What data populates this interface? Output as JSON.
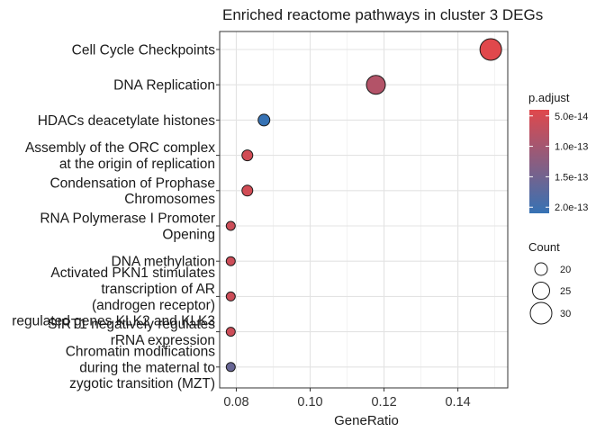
{
  "chart_data": {
    "type": "scatter",
    "title": "Enriched reactome pathways in cluster 3 DEGs",
    "xlabel": "GeneRatio",
    "ylabel": "",
    "xlim": [
      0.0755,
      0.1535
    ],
    "x_ticks": [
      0.08,
      0.1,
      0.12,
      0.14
    ],
    "x_tick_labels": [
      "0.08",
      "0.10",
      "0.12",
      "0.14"
    ],
    "grid": true,
    "categories": [
      [
        "Cell Cycle Checkpoints"
      ],
      [
        "DNA Replication"
      ],
      [
        "HDACs deacetylate histones"
      ],
      [
        "Assembly of the ORC complex",
        "at the origin of replication"
      ],
      [
        "Condensation of Prophase",
        "Chromosomes"
      ],
      [
        "RNA Polymerase I Promoter",
        "Opening"
      ],
      [
        "DNA methylation"
      ],
      [
        "Activated PKN1 stimulates",
        "transcription of AR",
        "(androgen receptor)",
        "regulated genes KLK2 and KLK3"
      ],
      [
        "SIRT1 negatively regulates",
        "rRNA expression"
      ],
      [
        "Chromatin modifications",
        "during the maternal to",
        "zygotic transition (MZT)"
      ]
    ],
    "points": [
      {
        "x": 0.1489,
        "count": 34,
        "p_adjust": 4e-14
      },
      {
        "x": 0.1178,
        "count": 31,
        "p_adjust": 8.5e-14
      },
      {
        "x": 0.0875,
        "count": 23,
        "p_adjust": 2.1e-13
      },
      {
        "x": 0.083,
        "count": 22,
        "p_adjust": 5.5e-14
      },
      {
        "x": 0.083,
        "count": 22,
        "p_adjust": 5.5e-14
      },
      {
        "x": 0.0785,
        "count": 20,
        "p_adjust": 6e-14
      },
      {
        "x": 0.0785,
        "count": 20,
        "p_adjust": 6e-14
      },
      {
        "x": 0.0785,
        "count": 20,
        "p_adjust": 6e-14
      },
      {
        "x": 0.0785,
        "count": 20,
        "p_adjust": 6e-14
      },
      {
        "x": 0.0785,
        "count": 20,
        "p_adjust": 1.6e-13
      }
    ],
    "color_legend": {
      "title": "p.adjust",
      "range": [
        4e-14,
        2.1e-13
      ],
      "colors": [
        "#e0484c",
        "#3672b4"
      ],
      "breaks": [
        5e-14,
        1e-13,
        1.5e-13,
        2e-13
      ],
      "labels": [
        "5.0e-14",
        "1.0e-13",
        "1.5e-13",
        "2.0e-13"
      ],
      "placement": "right"
    },
    "size_legend": {
      "title": "Count",
      "values": [
        20,
        25,
        30
      ],
      "labels": [
        "20",
        "25",
        "30"
      ],
      "count_range": [
        20,
        34
      ],
      "placement": "right"
    }
  }
}
